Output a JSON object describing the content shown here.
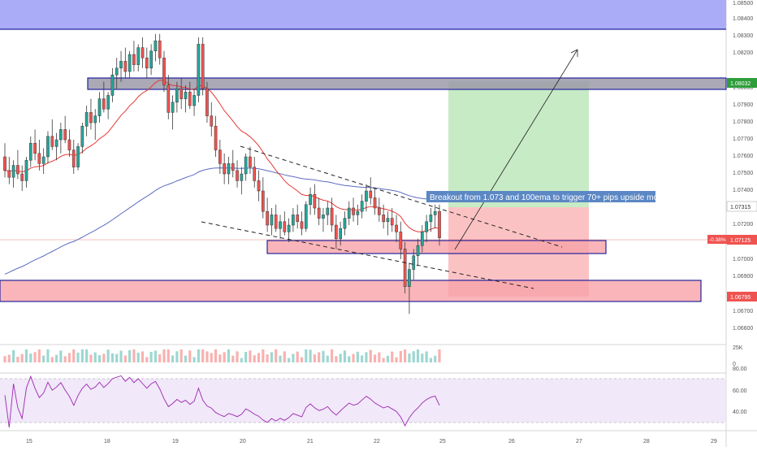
{
  "annotation": {
    "text": "Breakout from 1.073 and 100ema to trigger 70+ pips upside move"
  },
  "price_scale": {
    "labels": [
      "1.08500",
      "1.08400",
      "1.08300",
      "1.08200",
      "1.08000",
      "1.07900",
      "1.07800",
      "1.07700",
      "1.07600",
      "1.07500",
      "1.07400",
      "1.07200",
      "1.07000",
      "1.06900",
      "1.06700",
      "1.06600"
    ],
    "badges": {
      "green": "1.08032",
      "blue": "1.07315",
      "red": "1.07125",
      "red_pct": "-0.38%",
      "bottom": "1.06795"
    }
  },
  "volume_scale": {
    "labels": [
      "25K",
      "0"
    ]
  },
  "rsi_scale": {
    "labels": [
      "80.00",
      "60.00",
      "40.00"
    ]
  },
  "time_axis": {
    "labels": [
      "15",
      "18",
      "19",
      "20",
      "21",
      "22",
      "25",
      "26",
      "27",
      "28",
      "29"
    ]
  },
  "colors": {
    "bull": "#26a69a",
    "bear": "#ef5350",
    "candle": "#3a3a3a",
    "ema_fast": "#e53935",
    "ema_slow": "#5c6bc0",
    "rsi": "#9c27b0",
    "zone_top": "#a5a8f8",
    "zone_grey": "#9c9aa8",
    "zone_red": "#f8a3a8",
    "target": "#c7ebc5",
    "stop": "#fbc2c4",
    "annotation_bg": "#5b87c4"
  },
  "chart_data": {
    "type": "candlestick",
    "title": "",
    "instrument_hint": "EUR/USD-style price chart with 20 EMA, 100 EMA, volume and RSI",
    "y_range": [
      1.0651,
      1.0855
    ],
    "x_axis_days": [
      "15",
      "18",
      "19",
      "20",
      "21",
      "22",
      "25",
      "26",
      "27",
      "28",
      "29"
    ],
    "price_levels": {
      "last": 1.07125,
      "reference": 1.07315,
      "target": 1.08032,
      "stop": 1.06795
    },
    "zones": [
      {
        "name": "upper supply zone",
        "from": 1.0834,
        "to": 1.0855
      },
      {
        "name": "resistance zone",
        "from": 1.08,
        "to": 1.0807
      },
      {
        "name": "breakout zone",
        "from": 1.0704,
        "to": 1.0712
      },
      {
        "name": "demand zone",
        "from": 1.0677,
        "to": 1.069
      }
    ],
    "candles": [
      {
        "o": 1.076,
        "h": 1.0768,
        "l": 1.0748,
        "c": 1.0752
      },
      {
        "o": 1.0752,
        "h": 1.076,
        "l": 1.0744,
        "c": 1.0748
      },
      {
        "o": 1.0748,
        "h": 1.0758,
        "l": 1.0742,
        "c": 1.0755
      },
      {
        "o": 1.0755,
        "h": 1.0764,
        "l": 1.0747,
        "c": 1.075
      },
      {
        "o": 1.075,
        "h": 1.0755,
        "l": 1.074,
        "c": 1.0746
      },
      {
        "o": 1.0746,
        "h": 1.076,
        "l": 1.0742,
        "c": 1.0758
      },
      {
        "o": 1.0758,
        "h": 1.0772,
        "l": 1.0754,
        "c": 1.0768
      },
      {
        "o": 1.0768,
        "h": 1.0776,
        "l": 1.0758,
        "c": 1.0762
      },
      {
        "o": 1.0762,
        "h": 1.077,
        "l": 1.0752,
        "c": 1.0756
      },
      {
        "o": 1.0756,
        "h": 1.0765,
        "l": 1.075,
        "c": 1.076
      },
      {
        "o": 1.076,
        "h": 1.0775,
        "l": 1.0756,
        "c": 1.0772
      },
      {
        "o": 1.0772,
        "h": 1.0782,
        "l": 1.0764,
        "c": 1.0766
      },
      {
        "o": 1.0766,
        "h": 1.0774,
        "l": 1.0758,
        "c": 1.077
      },
      {
        "o": 1.077,
        "h": 1.078,
        "l": 1.0762,
        "c": 1.0776
      },
      {
        "o": 1.0776,
        "h": 1.0784,
        "l": 1.0768,
        "c": 1.077
      },
      {
        "o": 1.077,
        "h": 1.0776,
        "l": 1.076,
        "c": 1.0764
      },
      {
        "o": 1.0764,
        "h": 1.077,
        "l": 1.075,
        "c": 1.0754
      },
      {
        "o": 1.0754,
        "h": 1.0768,
        "l": 1.0752,
        "c": 1.0766
      },
      {
        "o": 1.0766,
        "h": 1.078,
        "l": 1.0762,
        "c": 1.0778
      },
      {
        "o": 1.0778,
        "h": 1.079,
        "l": 1.0772,
        "c": 1.0786
      },
      {
        "o": 1.0786,
        "h": 1.0794,
        "l": 1.0776,
        "c": 1.078
      },
      {
        "o": 1.078,
        "h": 1.0788,
        "l": 1.077,
        "c": 1.0784
      },
      {
        "o": 1.0784,
        "h": 1.0798,
        "l": 1.078,
        "c": 1.0794
      },
      {
        "o": 1.0794,
        "h": 1.0804,
        "l": 1.0786,
        "c": 1.0788
      },
      {
        "o": 1.0788,
        "h": 1.0798,
        "l": 1.0782,
        "c": 1.0796
      },
      {
        "o": 1.0796,
        "h": 1.0812,
        "l": 1.0792,
        "c": 1.0808
      },
      {
        "o": 1.0808,
        "h": 1.0818,
        "l": 1.08,
        "c": 1.0812
      },
      {
        "o": 1.0812,
        "h": 1.0822,
        "l": 1.0804,
        "c": 1.0816
      },
      {
        "o": 1.0816,
        "h": 1.0824,
        "l": 1.0806,
        "c": 1.081
      },
      {
        "o": 1.081,
        "h": 1.0822,
        "l": 1.0806,
        "c": 1.082
      },
      {
        "o": 1.082,
        "h": 1.0828,
        "l": 1.081,
        "c": 1.0814
      },
      {
        "o": 1.0814,
        "h": 1.0826,
        "l": 1.081,
        "c": 1.0824
      },
      {
        "o": 1.0824,
        "h": 1.083,
        "l": 1.0812,
        "c": 1.0818
      },
      {
        "o": 1.0818,
        "h": 1.0824,
        "l": 1.0806,
        "c": 1.0812
      },
      {
        "o": 1.0812,
        "h": 1.0826,
        "l": 1.0808,
        "c": 1.0822
      },
      {
        "o": 1.0822,
        "h": 1.0832,
        "l": 1.0816,
        "c": 1.0828
      },
      {
        "o": 1.0828,
        "h": 1.0832,
        "l": 1.0814,
        "c": 1.0818
      },
      {
        "o": 1.0818,
        "h": 1.0822,
        "l": 1.0798,
        "c": 1.0802
      },
      {
        "o": 1.0802,
        "h": 1.0808,
        "l": 1.0782,
        "c": 1.0786
      },
      {
        "o": 1.0786,
        "h": 1.0796,
        "l": 1.0776,
        "c": 1.0792
      },
      {
        "o": 1.0792,
        "h": 1.0804,
        "l": 1.0786,
        "c": 1.08
      },
      {
        "o": 1.08,
        "h": 1.0806,
        "l": 1.0788,
        "c": 1.0794
      },
      {
        "o": 1.0794,
        "h": 1.0802,
        "l": 1.0786,
        "c": 1.0798
      },
      {
        "o": 1.0798,
        "h": 1.0804,
        "l": 1.0788,
        "c": 1.079
      },
      {
        "o": 1.079,
        "h": 1.08,
        "l": 1.0784,
        "c": 1.0796
      },
      {
        "o": 1.0796,
        "h": 1.083,
        "l": 1.0792,
        "c": 1.0826
      },
      {
        "o": 1.0826,
        "h": 1.083,
        "l": 1.0796,
        "c": 1.08
      },
      {
        "o": 1.08,
        "h": 1.0804,
        "l": 1.078,
        "c": 1.0784
      },
      {
        "o": 1.0784,
        "h": 1.0792,
        "l": 1.0772,
        "c": 1.0778
      },
      {
        "o": 1.0778,
        "h": 1.0784,
        "l": 1.076,
        "c": 1.0764
      },
      {
        "o": 1.0764,
        "h": 1.077,
        "l": 1.075,
        "c": 1.0756
      },
      {
        "o": 1.0756,
        "h": 1.0762,
        "l": 1.0744,
        "c": 1.075
      },
      {
        "o": 1.075,
        "h": 1.076,
        "l": 1.0744,
        "c": 1.0756
      },
      {
        "o": 1.0756,
        "h": 1.0764,
        "l": 1.0748,
        "c": 1.0752
      },
      {
        "o": 1.0752,
        "h": 1.0758,
        "l": 1.0742,
        "c": 1.0746
      },
      {
        "o": 1.0746,
        "h": 1.0754,
        "l": 1.0738,
        "c": 1.075
      },
      {
        "o": 1.075,
        "h": 1.0762,
        "l": 1.0746,
        "c": 1.076
      },
      {
        "o": 1.076,
        "h": 1.0766,
        "l": 1.075,
        "c": 1.0754
      },
      {
        "o": 1.0754,
        "h": 1.076,
        "l": 1.0742,
        "c": 1.0746
      },
      {
        "o": 1.0746,
        "h": 1.0752,
        "l": 1.0734,
        "c": 1.074
      },
      {
        "o": 1.074,
        "h": 1.0748,
        "l": 1.0724,
        "c": 1.0728
      },
      {
        "o": 1.0728,
        "h": 1.0736,
        "l": 1.0716,
        "c": 1.072
      },
      {
        "o": 1.072,
        "h": 1.073,
        "l": 1.0714,
        "c": 1.0726
      },
      {
        "o": 1.0726,
        "h": 1.0732,
        "l": 1.0716,
        "c": 1.0718
      },
      {
        "o": 1.0718,
        "h": 1.0726,
        "l": 1.0712,
        "c": 1.0722
      },
      {
        "o": 1.0722,
        "h": 1.0728,
        "l": 1.0714,
        "c": 1.0716
      },
      {
        "o": 1.0716,
        "h": 1.0724,
        "l": 1.071,
        "c": 1.072
      },
      {
        "o": 1.072,
        "h": 1.073,
        "l": 1.0716,
        "c": 1.0726
      },
      {
        "o": 1.0726,
        "h": 1.0732,
        "l": 1.0718,
        "c": 1.0722
      },
      {
        "o": 1.0722,
        "h": 1.0728,
        "l": 1.0714,
        "c": 1.0718
      },
      {
        "o": 1.0718,
        "h": 1.0734,
        "l": 1.0716,
        "c": 1.0732
      },
      {
        "o": 1.0732,
        "h": 1.0742,
        "l": 1.0726,
        "c": 1.0738
      },
      {
        "o": 1.0738,
        "h": 1.0744,
        "l": 1.0726,
        "c": 1.073
      },
      {
        "o": 1.073,
        "h": 1.0736,
        "l": 1.072,
        "c": 1.0724
      },
      {
        "o": 1.0724,
        "h": 1.073,
        "l": 1.0716,
        "c": 1.0726
      },
      {
        "o": 1.0726,
        "h": 1.0734,
        "l": 1.072,
        "c": 1.073
      },
      {
        "o": 1.073,
        "h": 1.0736,
        "l": 1.0716,
        "c": 1.072
      },
      {
        "o": 1.072,
        "h": 1.0726,
        "l": 1.0706,
        "c": 1.0712
      },
      {
        "o": 1.0712,
        "h": 1.0722,
        "l": 1.0708,
        "c": 1.0718
      },
      {
        "o": 1.0718,
        "h": 1.0728,
        "l": 1.0714,
        "c": 1.0724
      },
      {
        "o": 1.0724,
        "h": 1.0734,
        "l": 1.072,
        "c": 1.073
      },
      {
        "o": 1.073,
        "h": 1.0736,
        "l": 1.0722,
        "c": 1.0726
      },
      {
        "o": 1.0726,
        "h": 1.0732,
        "l": 1.072,
        "c": 1.0728
      },
      {
        "o": 1.0728,
        "h": 1.0738,
        "l": 1.0724,
        "c": 1.0734
      },
      {
        "o": 1.0734,
        "h": 1.0744,
        "l": 1.0728,
        "c": 1.074
      },
      {
        "o": 1.074,
        "h": 1.0748,
        "l": 1.0732,
        "c": 1.0736
      },
      {
        "o": 1.0736,
        "h": 1.0742,
        "l": 1.0726,
        "c": 1.073
      },
      {
        "o": 1.073,
        "h": 1.0736,
        "l": 1.0722,
        "c": 1.0726
      },
      {
        "o": 1.0726,
        "h": 1.0732,
        "l": 1.0718,
        "c": 1.0722
      },
      {
        "o": 1.0722,
        "h": 1.0728,
        "l": 1.0714,
        "c": 1.0724
      },
      {
        "o": 1.0724,
        "h": 1.073,
        "l": 1.0716,
        "c": 1.072
      },
      {
        "o": 1.072,
        "h": 1.0726,
        "l": 1.071,
        "c": 1.0716
      },
      {
        "o": 1.0716,
        "h": 1.0722,
        "l": 1.07,
        "c": 1.0706
      },
      {
        "o": 1.0706,
        "h": 1.071,
        "l": 1.068,
        "c": 1.0684
      },
      {
        "o": 1.0684,
        "h": 1.0698,
        "l": 1.0668,
        "c": 1.0694
      },
      {
        "o": 1.0694,
        "h": 1.0706,
        "l": 1.0688,
        "c": 1.0702
      },
      {
        "o": 1.0702,
        "h": 1.0712,
        "l": 1.0696,
        "c": 1.0708
      },
      {
        "o": 1.0708,
        "h": 1.072,
        "l": 1.0704,
        "c": 1.0716
      },
      {
        "o": 1.0716,
        "h": 1.0726,
        "l": 1.071,
        "c": 1.0722
      },
      {
        "o": 1.0722,
        "h": 1.073,
        "l": 1.0716,
        "c": 1.0726
      },
      {
        "o": 1.0726,
        "h": 1.0732,
        "l": 1.0718,
        "c": 1.0728
      },
      {
        "o": 1.0728,
        "h": 1.0732,
        "l": 1.0708,
        "c": 1.07125
      }
    ],
    "rsi_range": [
      30,
      90
    ],
    "rsi_levels": [
      70,
      30
    ]
  }
}
